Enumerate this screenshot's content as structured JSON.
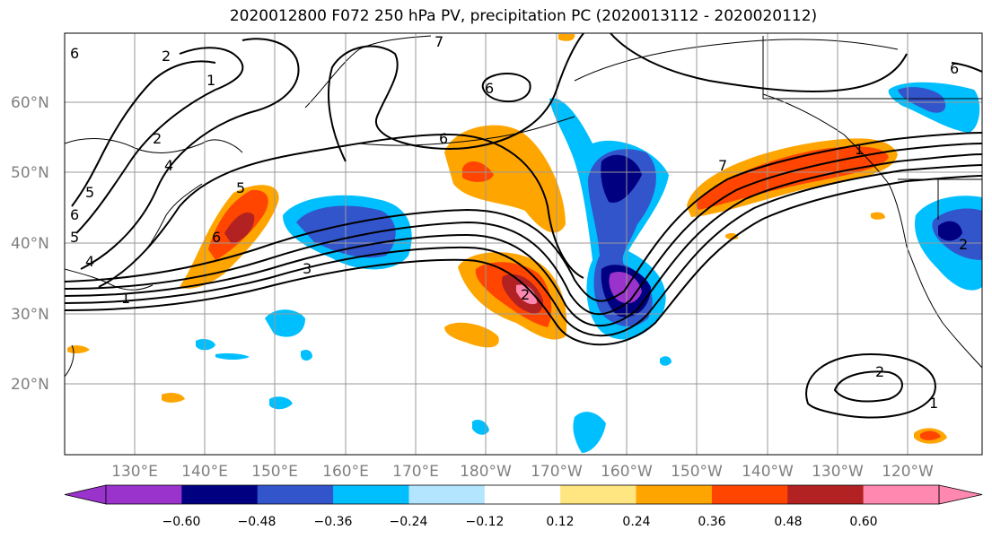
{
  "title": "2020012800 F072 250 hPa PV, precipitation PC (2020013112 - 2020020112)",
  "lat_labels": [
    "60°N",
    "50°N",
    "40°N",
    "30°N",
    "20°N"
  ],
  "lon_labels": [
    "130°E",
    "140°E",
    "150°E",
    "160°E",
    "170°E",
    "180°W",
    "170°W",
    "160°W",
    "150°W",
    "140°W",
    "130°W",
    "120°W"
  ],
  "colorbar": {
    "colors": [
      "#9933cc",
      "#000080",
      "#3355cc",
      "#00bfff",
      "#b3e5ff",
      "#ffffff",
      "#ffe680",
      "#ffa500",
      "#ff4500",
      "#b22222",
      "#ff88b0"
    ],
    "tick_labels": [
      "−0.60",
      "−0.48",
      "−0.36",
      "−0.24",
      "−0.12",
      "0.12",
      "0.24",
      "0.36",
      "0.48",
      "0.60"
    ]
  },
  "contour_labels": [
    "1",
    "2",
    "2",
    "3",
    "4",
    "4",
    "5",
    "5",
    "6",
    "6",
    "6",
    "7",
    "7",
    "6",
    "5",
    "6",
    "1",
    "2",
    "2",
    "1",
    "2",
    "1",
    "6"
  ]
}
